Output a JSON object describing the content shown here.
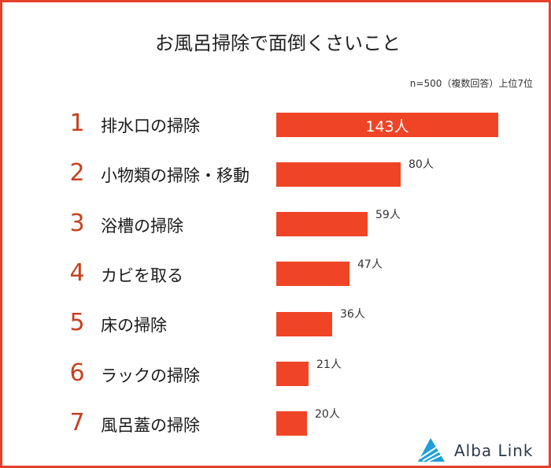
{
  "chart_data": {
    "type": "bar",
    "orientation": "horizontal",
    "title": "お風呂掃除で面倒くさいこと",
    "note": "n=500（複数回答）上位7位",
    "ranks": [
      "1",
      "2",
      "3",
      "4",
      "5",
      "6",
      "7"
    ],
    "categories": [
      "排水口の掃除",
      "小物類の掃除・移動",
      "浴槽の掃除",
      "カビを取る",
      "床の掃除",
      "ラックの掃除",
      "風呂蓋の掃除"
    ],
    "values": [
      143,
      80,
      59,
      47,
      36,
      21,
      20
    ],
    "value_labels": [
      "143人",
      "80人",
      "59人",
      "47人",
      "36人",
      "21人",
      "20人"
    ],
    "unit": "人",
    "bar_color": "#ef4526",
    "rank_color": "#c4421f",
    "border_color": "#e8412b"
  },
  "brand": {
    "name": "Alba Link",
    "logo_icon": "triangle-logo-icon",
    "logo_color": "#1e9fd8"
  }
}
